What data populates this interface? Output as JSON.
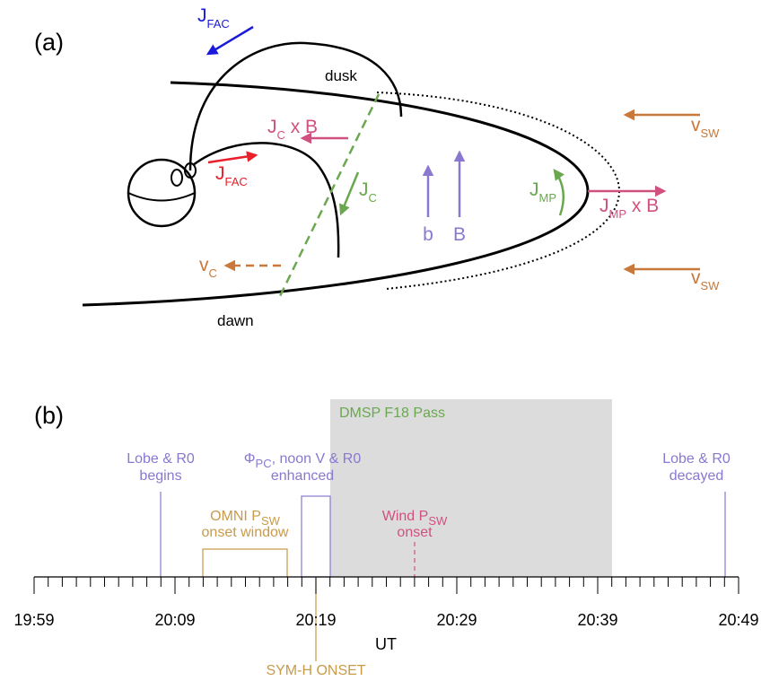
{
  "panel_a": {
    "label": "(a)",
    "dusk": "dusk",
    "dawn": "dawn",
    "j_fac_top": {
      "main": "J",
      "sub": "FAC"
    },
    "j_fac_earth": {
      "main": "J",
      "sub": "FAC"
    },
    "jc_cross_b": {
      "main": "J",
      "sub": "C",
      "rest": " x B"
    },
    "j_c": {
      "main": "J",
      "sub": "C"
    },
    "b_small": "b",
    "b_big": "B",
    "j_mp": {
      "main": "J",
      "sub": "MP"
    },
    "jmp_cross_b": {
      "main": "J",
      "sub": "MP",
      "rest": " x B"
    },
    "v_sw_top": {
      "main": "v",
      "sub": "SW"
    },
    "v_sw_bottom": {
      "main": "v",
      "sub": "SW"
    },
    "v_c": {
      "main": "v",
      "sub": "C"
    }
  },
  "panel_b": {
    "label": "(b)",
    "shaded_label": "DMSP F18 Pass",
    "axis_label": "UT",
    "ticks": [
      "19:59",
      "20:09",
      "20:19",
      "20:29",
      "20:39",
      "20:49"
    ],
    "lobe_begins": [
      "Lobe & R0",
      "begins"
    ],
    "phi": {
      "main": "Φ",
      "sub": "PC",
      "rest": ", noon V & R0",
      "line2": "enhanced"
    },
    "omni": {
      "main": "OMNI P",
      "sub": "SW",
      "line2": "onset window"
    },
    "wind": {
      "main": "Wind P",
      "sub": "SW",
      "line2": "onset"
    },
    "lobe_decayed": [
      "Lobe & R0",
      "decayed"
    ],
    "symh": "SYM-H ONSET"
  }
}
